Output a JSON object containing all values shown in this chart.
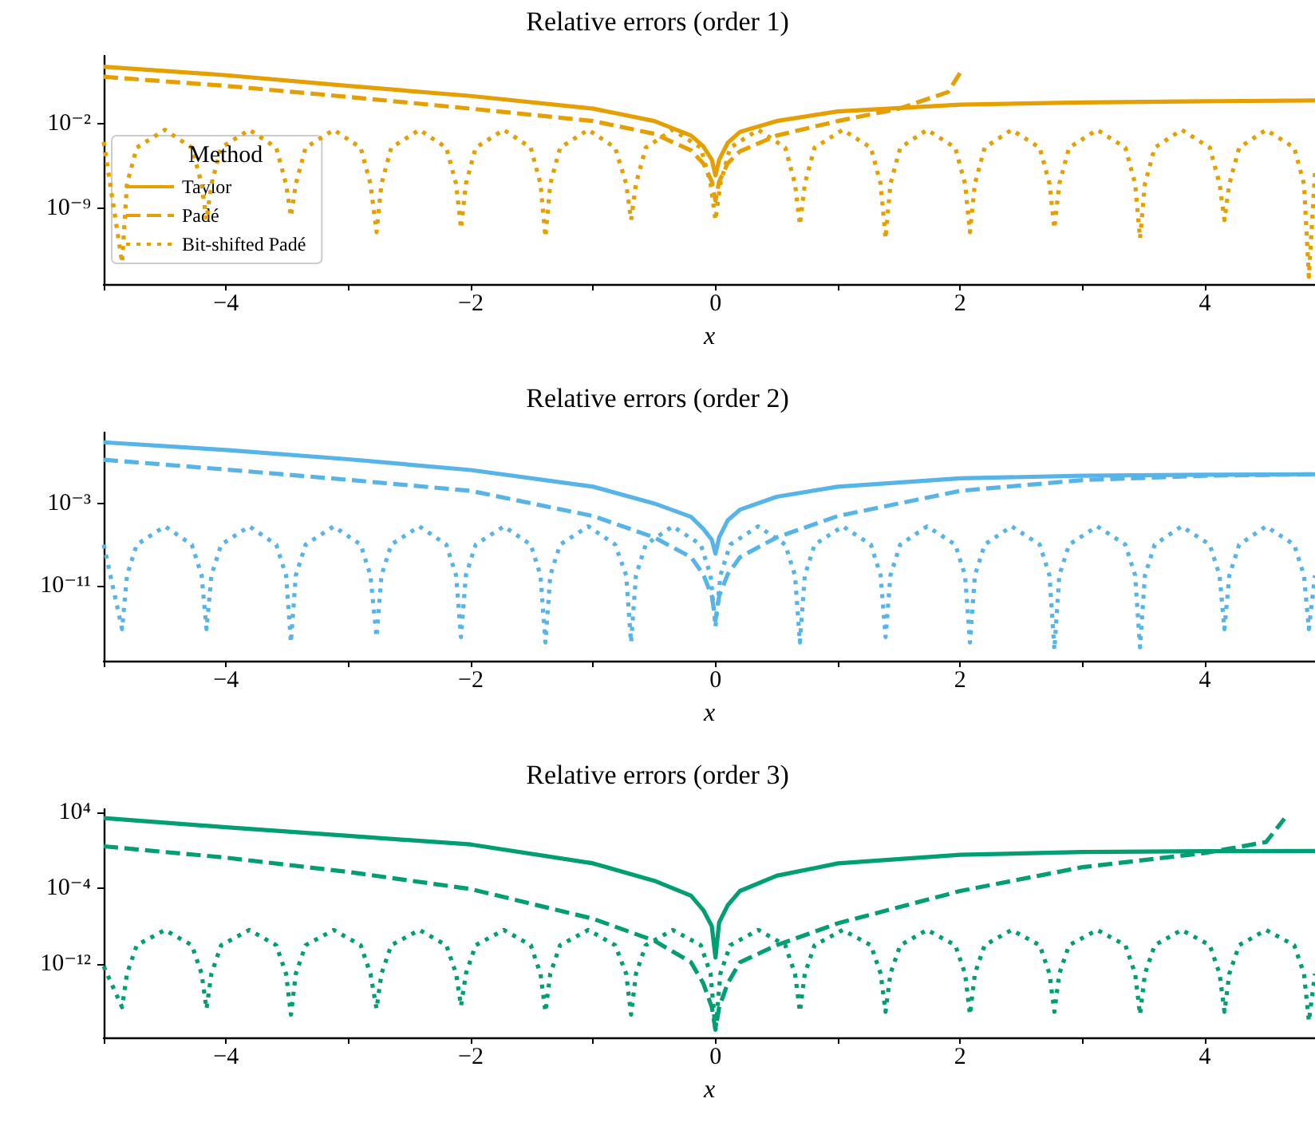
{
  "chart_data": [
    {
      "type": "line",
      "title": "Relative errors (order 1)",
      "xlabel": "x",
      "log": "y",
      "marker": "none",
      "legend": "bottom left",
      "legend_title": "Method",
      "xlim": [
        -5,
        4.9
      ],
      "xticks": [
        {
          "value": -5,
          "label": null
        },
        {
          "value": -4,
          "label": "−4"
        },
        {
          "value": -3,
          "label": null
        },
        {
          "value": -2,
          "label": "−2"
        },
        {
          "value": -1,
          "label": null
        },
        0,
        {
          "value": 1,
          "label": null
        },
        2,
        {
          "value": 3,
          "label": null
        },
        4
      ],
      "ylim": [
        5e-16,
        4000
      ],
      "yticks": [
        {
          "value": 0.01,
          "label": "10⁻²"
        },
        {
          "value": 1e-09,
          "label": "10⁻⁹"
        }
      ],
      "series": [
        {
          "name": "Taylor",
          "color": "#e69f00",
          "line_style": "solid",
          "x": [
            -5,
            -4,
            -3,
            -2,
            -1,
            -0.5,
            -0.2,
            -0.1,
            -0.03,
            0,
            0.03,
            0.1,
            0.2,
            0.5,
            1,
            2,
            3,
            4,
            4.9
          ],
          "values": [
            500,
            100,
            13,
            1.9,
            0.17,
            0.016,
            0.001,
            0.00013,
            1e-05,
            5e-07,
            1e-05,
            0.00025,
            0.002,
            0.016,
            0.1,
            0.37,
            0.56,
            0.7,
            0.8
          ]
        },
        {
          "name": "Padé",
          "color": "#e69f00",
          "line_style": "dashed",
          "x": [
            -5,
            -4,
            -3,
            -2,
            -1,
            -0.5,
            -0.2,
            -0.1,
            -0.03,
            0,
            0.03,
            0.1,
            0.2,
            0.5,
            1,
            1.5,
            1.9,
            2.0
          ],
          "values": [
            74,
            13,
            1.6,
            0.17,
            0.016,
            0.0014,
            6e-05,
            5e-06,
            1.6e-07,
            4e-09,
            1.6e-07,
            5e-06,
            5e-05,
            0.001,
            0.016,
            0.17,
            4,
            160
          ]
        },
        {
          "name": "Bit-shifted Padé",
          "color": "#e69f00",
          "line_style": "dotted",
          "x": [
            -5.0,
            -4.85,
            -4.81,
            -4.73,
            -4.5,
            -4.28,
            -4.2,
            -4.16,
            -4.12,
            -4.04,
            -3.81,
            -3.59,
            -3.51,
            -3.47,
            -3.43,
            -3.35,
            -3.12,
            -2.9,
            -2.82,
            -2.77,
            -2.73,
            -2.65,
            -2.42,
            -2.2,
            -2.12,
            -2.08,
            -2.04,
            -1.96,
            -1.73,
            -1.51,
            -1.43,
            -1.39,
            -1.35,
            -1.27,
            -1.04,
            -0.82,
            -0.73,
            -0.69,
            -0.65,
            -0.57,
            -0.35,
            -0.12,
            -0.04,
            0,
            0.04,
            0.12,
            0.35,
            0.57,
            0.65,
            0.69,
            0.73,
            0.81,
            1.04,
            1.27,
            1.35,
            1.39,
            1.43,
            1.51,
            1.73,
            1.96,
            2.04,
            2.08,
            2.12,
            2.2,
            2.42,
            2.65,
            2.73,
            2.77,
            2.81,
            2.89,
            3.12,
            3.35,
            3.43,
            3.47,
            3.51,
            3.59,
            3.81,
            4.04,
            4.12,
            4.16,
            4.2,
            4.28,
            4.5,
            4.73,
            4.81,
            4.85,
            4.9
          ],
          "values": [
            0.0003,
            3e-14,
            1e-07,
            0.0001,
            0.003,
            0.0001,
            1e-07,
            1e-10,
            1e-07,
            0.0001,
            0.003,
            0.0001,
            1e-07,
            2e-10,
            1e-07,
            0.0001,
            0.003,
            0.0001,
            1e-07,
            1e-11,
            1e-07,
            0.0001,
            0.003,
            0.0001,
            1e-07,
            2e-11,
            1e-07,
            0.0001,
            0.003,
            0.0001,
            1e-07,
            4e-12,
            1e-07,
            0.0001,
            0.003,
            0.0001,
            1e-07,
            1e-10,
            1e-07,
            0.0001,
            0.003,
            0.0001,
            1e-07,
            1e-10,
            1e-07,
            0.0001,
            0.003,
            0.0001,
            1e-07,
            4e-11,
            1e-07,
            0.0001,
            0.003,
            0.0001,
            1e-07,
            3e-12,
            1e-07,
            0.0001,
            0.003,
            0.0001,
            1e-07,
            1e-11,
            1e-07,
            0.0001,
            0.003,
            0.0001,
            1e-07,
            2e-11,
            1e-07,
            0.0001,
            0.003,
            0.0001,
            1e-07,
            3e-12,
            1e-07,
            0.0001,
            0.003,
            0.0001,
            1e-07,
            1e-10,
            1e-07,
            0.0001,
            0.003,
            0.0001,
            1e-07,
            2e-15,
            1e-06
          ]
        }
      ]
    },
    {
      "type": "line",
      "title": "Relative errors (order 2)",
      "xlabel": "x",
      "log": "y",
      "marker": "none",
      "xlim": [
        -5,
        4.9
      ],
      "xticks": [
        {
          "value": -5,
          "label": null
        },
        {
          "value": -4,
          "label": "−4"
        },
        {
          "value": -3,
          "label": null
        },
        {
          "value": -2,
          "label": "−2"
        },
        {
          "value": -1,
          "label": null
        },
        0,
        {
          "value": 1,
          "label": null
        },
        2,
        {
          "value": 3,
          "label": null
        },
        4
      ],
      "ylim": [
        5e-19,
        8000
      ],
      "yticks": [
        {
          "value": 0.001,
          "label": "10⁻³"
        },
        {
          "value": 1e-11,
          "label": "10⁻¹¹"
        }
      ],
      "series": [
        {
          "color": "#56b4e9",
          "line_style": "solid",
          "x": [
            -5,
            -4,
            -3,
            -2,
            -1,
            -0.5,
            -0.2,
            -0.1,
            -0.03,
            0,
            0.03,
            0.1,
            0.2,
            0.5,
            1,
            2,
            3,
            4,
            4.9
          ],
          "values": [
            900,
            160,
            20,
            1.8,
            0.043,
            0.001,
            5e-05,
            3.5e-06,
            3e-07,
            1.3e-08,
            5e-07,
            2.3e-05,
            0.00025,
            0.0045,
            0.043,
            0.28,
            0.5,
            0.63,
            0.7
          ]
        },
        {
          "color": "#56b4e9",
          "line_style": "dashed",
          "x": [
            -5,
            -4,
            -3,
            -2,
            -1,
            -0.5,
            -0.2,
            -0.1,
            -0.03,
            0,
            0.03,
            0.1,
            0.2,
            0.5,
            1,
            2,
            3,
            4,
            4.9
          ],
          "values": [
            18,
            2,
            0.2,
            0.017,
            6e-05,
            5e-07,
            6e-09,
            1.3e-10,
            1e-12,
            4e-15,
            1e-12,
            1.3e-10,
            6e-09,
            5e-07,
            6e-05,
            0.017,
            0.19,
            0.5,
            0.7
          ]
        },
        {
          "color": "#56b4e9",
          "line_style": "dotted",
          "x": [
            -5.0,
            -4.85,
            -4.81,
            -4.73,
            -4.5,
            -4.28,
            -4.2,
            -4.16,
            -4.12,
            -4.04,
            -3.81,
            -3.59,
            -3.51,
            -3.47,
            -3.43,
            -3.35,
            -3.12,
            -2.9,
            -2.82,
            -2.77,
            -2.73,
            -2.65,
            -2.42,
            -2.2,
            -2.12,
            -2.08,
            -2.04,
            -1.96,
            -1.73,
            -1.51,
            -1.43,
            -1.39,
            -1.35,
            -1.27,
            -1.04,
            -0.82,
            -0.73,
            -0.69,
            -0.65,
            -0.57,
            -0.35,
            -0.12,
            -0.04,
            0,
            0.04,
            0.12,
            0.35,
            0.57,
            0.65,
            0.69,
            0.73,
            0.81,
            1.04,
            1.27,
            1.35,
            1.39,
            1.43,
            1.51,
            1.73,
            1.96,
            2.04,
            2.08,
            2.12,
            2.2,
            2.42,
            2.65,
            2.73,
            2.77,
            2.81,
            2.89,
            3.12,
            3.35,
            3.43,
            3.47,
            3.51,
            3.59,
            3.81,
            4.04,
            4.12,
            4.16,
            4.2,
            4.28,
            4.5,
            4.73,
            4.81,
            4.85,
            4.9
          ],
          "values": [
            1e-07,
            6e-16,
            1e-10,
            1e-07,
            6e-06,
            1e-07,
            1e-10,
            6e-16,
            1e-10,
            1e-07,
            6e-06,
            1e-07,
            1e-10,
            3e-17,
            1e-10,
            1e-07,
            6e-06,
            1e-07,
            1e-10,
            1e-16,
            1e-10,
            1e-07,
            6e-06,
            1e-07,
            1e-10,
            1e-16,
            1e-10,
            1e-07,
            6e-06,
            1e-07,
            1e-10,
            3e-17,
            1e-10,
            1e-07,
            6e-06,
            1e-07,
            1e-10,
            3e-17,
            1e-10,
            1e-07,
            6e-06,
            1e-07,
            1e-10,
            1e-15,
            1e-10,
            1e-07,
            6e-06,
            1e-07,
            1e-10,
            3e-17,
            1e-10,
            1e-07,
            6e-06,
            1e-07,
            1e-10,
            1e-16,
            1e-10,
            1e-07,
            6e-06,
            1e-07,
            1e-10,
            3e-17,
            1e-10,
            1e-07,
            6e-06,
            1e-07,
            1e-10,
            6e-18,
            1e-10,
            1e-07,
            6e-06,
            1e-07,
            1e-10,
            1e-17,
            1e-10,
            1e-07,
            6e-06,
            1e-07,
            1e-10,
            6e-16,
            1e-10,
            1e-07,
            6e-06,
            1e-07,
            1e-10,
            6e-16,
            1e-10
          ]
        }
      ]
    },
    {
      "type": "line",
      "title": "Relative errors (order 3)",
      "xlabel": "x",
      "log": "y",
      "marker": "none",
      "xlim": [
        -5,
        4.9
      ],
      "xticks": [
        {
          "value": -5,
          "label": null
        },
        {
          "value": -4,
          "label": "−4"
        },
        {
          "value": -3,
          "label": null
        },
        {
          "value": -2,
          "label": "−2"
        },
        {
          "value": -1,
          "label": null
        },
        0,
        {
          "value": 1,
          "label": null
        },
        2,
        {
          "value": 3,
          "label": null
        },
        4
      ],
      "ylim": [
        2e-20,
        20000
      ],
      "yticks": [
        {
          "value": 10000,
          "label": "10⁴"
        },
        {
          "value": 0.0001,
          "label": "10⁻⁴"
        },
        {
          "value": 1e-12,
          "label": "10⁻¹²"
        }
      ],
      "series": [
        {
          "color": "#009e73",
          "line_style": "solid",
          "x": [
            -5,
            -4,
            -3,
            -2,
            -1,
            -0.5,
            -0.2,
            -0.1,
            -0.03,
            0,
            0.03,
            0.1,
            0.2,
            0.5,
            1,
            2,
            3,
            4,
            4.9
          ],
          "values": [
            2300,
            250,
            32,
            3.9,
            0.04,
            0.0006,
            1.6e-05,
            5e-07,
            1e-08,
            5e-12,
            2.5e-08,
            1.6e-06,
            5e-05,
            0.002,
            0.04,
            0.32,
            0.63,
            0.76,
            0.8
          ]
        },
        {
          "color": "#009e73",
          "line_style": "dashed",
          "x": [
            -5,
            -4,
            -3,
            -2,
            -1,
            -0.5,
            -0.2,
            -0.1,
            -0.03,
            0,
            0.03,
            0.1,
            0.2,
            0.5,
            1,
            2,
            3,
            4,
            4.5,
            4.65
          ],
          "values": [
            2.5,
            0.16,
            0.005,
            8e-05,
            6e-08,
            3e-10,
            1.6e-12,
            1e-14,
            3e-17,
            1.3e-19,
            3e-17,
            1e-14,
            1.6e-12,
            1e-10,
            2e-08,
            5e-05,
            0.016,
            0.5,
            7,
            2000
          ]
        },
        {
          "color": "#009e73",
          "line_style": "dotted",
          "x": [
            -5.0,
            -4.85,
            -4.81,
            -4.73,
            -4.5,
            -4.28,
            -4.2,
            -4.16,
            -4.12,
            -4.04,
            -3.81,
            -3.59,
            -3.51,
            -3.47,
            -3.43,
            -3.35,
            -3.12,
            -2.9,
            -2.82,
            -2.77,
            -2.73,
            -2.65,
            -2.42,
            -2.2,
            -2.12,
            -2.08,
            -2.04,
            -1.96,
            -1.73,
            -1.51,
            -1.43,
            -1.39,
            -1.35,
            -1.27,
            -1.04,
            -0.82,
            -0.73,
            -0.69,
            -0.65,
            -0.57,
            -0.35,
            -0.12,
            -0.04,
            0,
            0.04,
            0.12,
            0.35,
            0.57,
            0.65,
            0.69,
            0.73,
            0.81,
            1.04,
            1.27,
            1.35,
            1.39,
            1.43,
            1.51,
            1.73,
            1.96,
            2.04,
            2.08,
            2.12,
            2.2,
            2.42,
            2.65,
            2.73,
            2.77,
            2.81,
            2.89,
            3.12,
            3.35,
            3.43,
            3.47,
            3.51,
            3.59,
            3.81,
            4.04,
            4.12,
            4.16,
            4.2,
            4.28,
            4.5,
            4.73,
            4.81,
            4.85,
            4.9
          ],
          "values": [
            6e-13,
            3e-17,
            1e-13,
            1e-10,
            4e-09,
            1e-10,
            1e-13,
            2e-17,
            1e-13,
            1e-10,
            4e-09,
            1e-10,
            1e-13,
            5e-18,
            1e-13,
            1e-10,
            4e-09,
            1e-10,
            1e-13,
            2e-17,
            1e-13,
            1e-10,
            4e-09,
            1e-10,
            1e-13,
            4e-17,
            1e-13,
            1e-10,
            4e-09,
            1e-10,
            1e-13,
            1e-17,
            1e-13,
            1e-10,
            4e-09,
            1e-10,
            1e-13,
            5e-18,
            1e-13,
            1e-10,
            4e-09,
            1e-10,
            1e-13,
            1e-19,
            1e-13,
            1e-10,
            4e-09,
            1e-10,
            1e-13,
            1e-17,
            1e-13,
            1e-10,
            4e-09,
            1e-10,
            1e-13,
            1e-17,
            1e-13,
            1e-10,
            4e-09,
            1e-10,
            1e-13,
            5e-18,
            1e-13,
            1e-10,
            4e-09,
            1e-10,
            1e-13,
            1e-17,
            1e-13,
            1e-10,
            4e-09,
            1e-10,
            1e-13,
            5e-18,
            1e-13,
            1e-10,
            4e-09,
            1e-10,
            1e-13,
            1e-17,
            1e-13,
            1e-10,
            4e-09,
            1e-10,
            1e-13,
            1e-18,
            1e-13
          ]
        }
      ]
    }
  ]
}
